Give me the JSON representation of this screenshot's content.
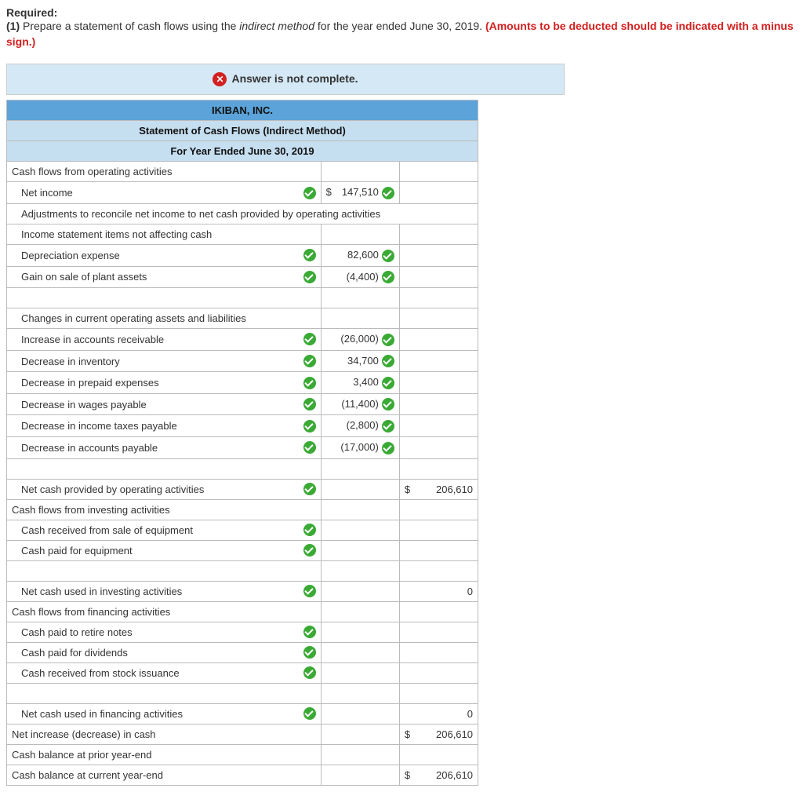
{
  "instruction": {
    "required_label": "Required:",
    "part_number": "(1)",
    "text_before_italic": " Prepare a statement of cash flows using the ",
    "italic_phrase": "indirect method",
    "text_after_italic": " for the year ended June 30, 2019. ",
    "red_warning": "(Amounts to be deducted should be indicated with a minus sign.)"
  },
  "alert": {
    "text": "Answer is not complete."
  },
  "headers": {
    "company": "IKIBAN, INC.",
    "title": "Statement of Cash Flows (Indirect Method)",
    "period": "For Year Ended June 30, 2019"
  },
  "rows": [
    {
      "label": "Cash flows from operating activities",
      "indent": false,
      "label_check": false,
      "val1": "",
      "val1_check": false,
      "val2": "",
      "val2_dollar": false
    },
    {
      "label": "Net income",
      "indent": true,
      "label_check": true,
      "val1": "147,510",
      "val1_dollar": true,
      "val1_check": true,
      "val2": "",
      "val2_dollar": false
    },
    {
      "label": "Adjustments to reconcile net income to net cash provided by operating activities",
      "indent": true,
      "label_check": false,
      "val1": "",
      "val1_check": false,
      "val2": "",
      "val2_dollar": false,
      "span_all": true
    },
    {
      "label": "Income statement items not affecting cash",
      "indent": true,
      "label_check": false,
      "val1": "",
      "val1_check": false,
      "val2": "",
      "val2_dollar": false
    },
    {
      "label": "Depreciation expense",
      "indent": true,
      "label_check": true,
      "val1": "82,600",
      "val1_check": true,
      "val2": "",
      "val2_dollar": false
    },
    {
      "label": "Gain on sale of plant assets",
      "indent": true,
      "label_check": true,
      "val1": "(4,400)",
      "val1_check": true,
      "val2": "",
      "val2_dollar": false
    },
    {
      "label": "",
      "indent": true,
      "label_check": false,
      "val1": "",
      "val1_check": false,
      "val2": "",
      "val2_dollar": false
    },
    {
      "label": "Changes in current operating assets and liabilities",
      "indent": true,
      "label_check": false,
      "val1": "",
      "val1_check": false,
      "val2": "",
      "val2_dollar": false
    },
    {
      "label": "Increase in accounts receivable",
      "indent": true,
      "label_check": true,
      "val1": "(26,000)",
      "val1_check": true,
      "val2": "",
      "val2_dollar": false
    },
    {
      "label": "Decrease in inventory",
      "indent": true,
      "label_check": true,
      "val1": "34,700",
      "val1_check": true,
      "val2": "",
      "val2_dollar": false
    },
    {
      "label": "Decrease in prepaid expenses",
      "indent": true,
      "label_check": true,
      "val1": "3,400",
      "val1_check": true,
      "val2": "",
      "val2_dollar": false
    },
    {
      "label": "Decrease in wages payable",
      "indent": true,
      "label_check": true,
      "val1": "(11,400)",
      "val1_check": true,
      "val2": "",
      "val2_dollar": false
    },
    {
      "label": "Decrease in income taxes payable",
      "indent": true,
      "label_check": true,
      "val1": "(2,800)",
      "val1_check": true,
      "val2": "",
      "val2_dollar": false
    },
    {
      "label": "Decrease in accounts payable",
      "indent": true,
      "label_check": true,
      "val1": "(17,000)",
      "val1_check": true,
      "val2": "",
      "val2_dollar": false
    },
    {
      "label": "",
      "indent": true,
      "label_check": false,
      "val1": "",
      "val1_check": false,
      "val2": "",
      "val2_dollar": false
    },
    {
      "label": "Net cash provided by operating activities",
      "indent": true,
      "label_check": true,
      "val1": "",
      "val1_check": false,
      "val2": "206,610",
      "val2_dollar": true
    },
    {
      "label": "Cash flows from investing activities",
      "indent": false,
      "label_check": false,
      "val1": "",
      "val1_check": false,
      "val2": "",
      "val2_dollar": false
    },
    {
      "label": "Cash received from sale of equipment",
      "indent": true,
      "label_check": true,
      "val1": "",
      "val1_check": false,
      "val2": "",
      "val2_dollar": false
    },
    {
      "label": "Cash paid for equipment",
      "indent": true,
      "label_check": true,
      "val1": "",
      "val1_check": false,
      "val2": "",
      "val2_dollar": false
    },
    {
      "label": "",
      "indent": true,
      "label_check": false,
      "val1": "",
      "val1_check": false,
      "val2": "",
      "val2_dollar": false
    },
    {
      "label": "Net cash used in investing activities",
      "indent": true,
      "label_check": true,
      "val1": "",
      "val1_check": false,
      "val2": "0",
      "val2_dollar": false
    },
    {
      "label": "Cash flows from financing activities",
      "indent": false,
      "label_check": false,
      "val1": "",
      "val1_check": false,
      "val2": "",
      "val2_dollar": false
    },
    {
      "label": "Cash paid to retire notes",
      "indent": true,
      "label_check": true,
      "val1": "",
      "val1_check": false,
      "val2": "",
      "val2_dollar": false
    },
    {
      "label": "Cash paid for dividends",
      "indent": true,
      "label_check": true,
      "val1": "",
      "val1_check": false,
      "val2": "",
      "val2_dollar": false
    },
    {
      "label": "Cash received from stock issuance",
      "indent": true,
      "label_check": true,
      "val1": "",
      "val1_check": false,
      "val2": "",
      "val2_dollar": false
    },
    {
      "label": "",
      "indent": true,
      "label_check": false,
      "val1": "",
      "val1_check": false,
      "val2": "",
      "val2_dollar": false
    },
    {
      "label": "Net cash used in financing activities",
      "indent": true,
      "label_check": true,
      "val1": "",
      "val1_check": false,
      "val2": "0",
      "val2_dollar": false
    },
    {
      "label": "Net increase (decrease) in cash",
      "indent": false,
      "label_check": false,
      "val1": "",
      "val1_check": false,
      "val2": "206,610",
      "val2_dollar": true
    },
    {
      "label": "Cash balance at prior year-end",
      "indent": false,
      "label_check": false,
      "val1": "",
      "val1_check": false,
      "val2": "",
      "val2_dollar": false
    },
    {
      "label": "Cash balance at current year-end",
      "indent": false,
      "label_check": false,
      "val1": "",
      "val1_check": false,
      "val2": "206,610",
      "val2_dollar": true
    }
  ],
  "colors": {
    "header_bg": "#5ba3d8",
    "subheader_bg": "#c5def0",
    "alert_bg": "#d5e8f5",
    "border": "#bbbbbb",
    "check_green": "#3aaa35",
    "error_red": "#d32020",
    "warning_text": "#d32020"
  }
}
